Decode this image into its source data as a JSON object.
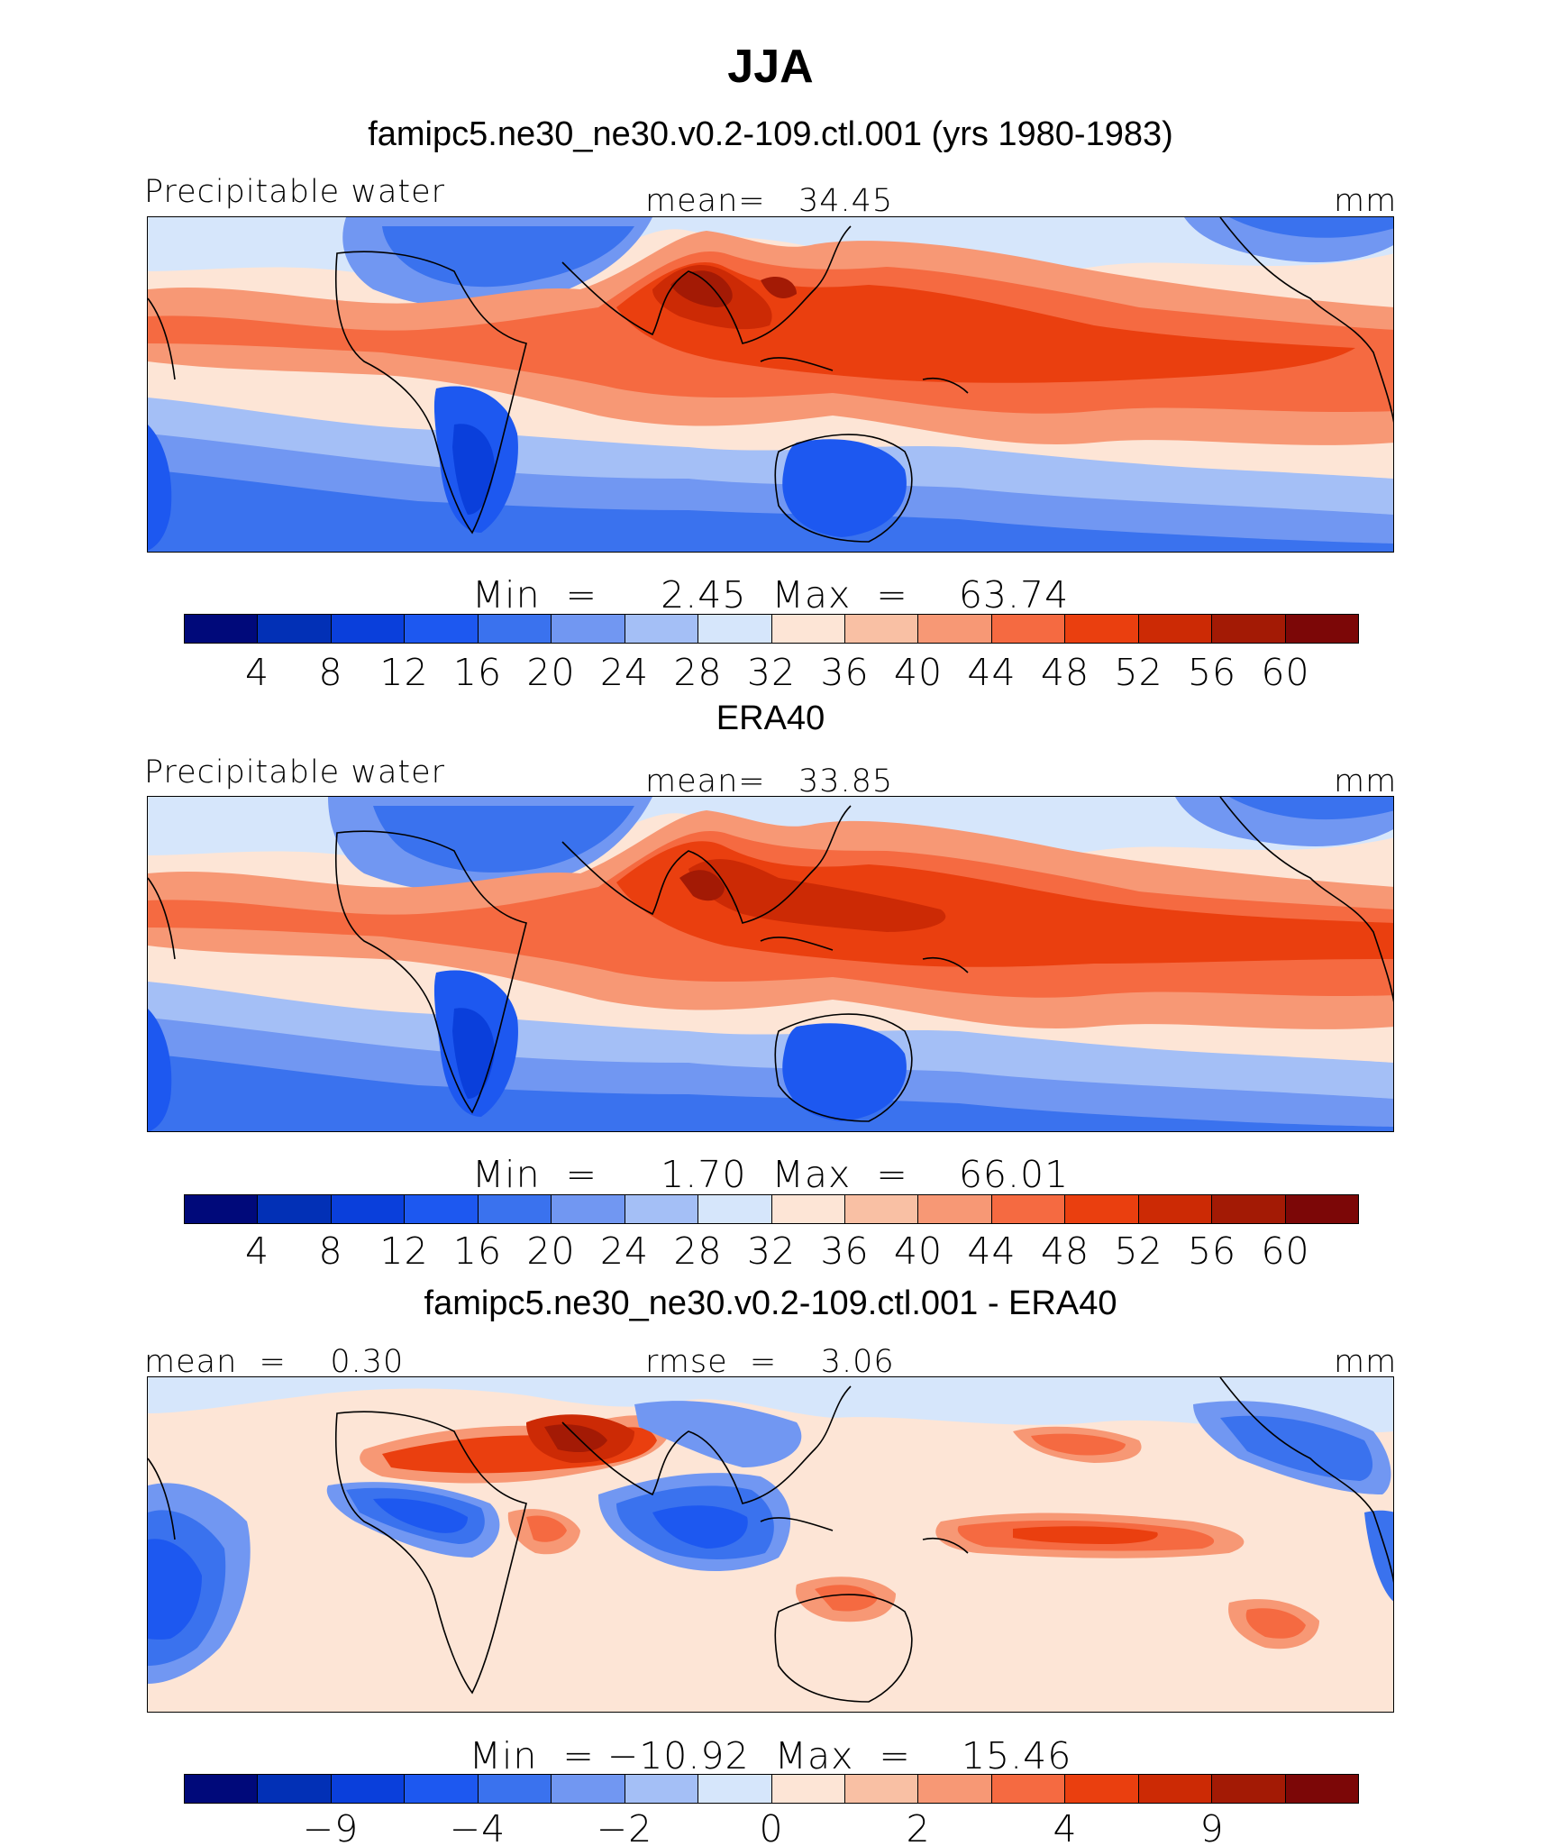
{
  "title": "JJA",
  "palette": [
    "#00097a",
    "#0230b6",
    "#0a3fdb",
    "#1d58f0",
    "#3a72ee",
    "#7197f2",
    "#a4bff6",
    "#d6e6fb",
    "#fde5d6",
    "#f9c0a4",
    "#f79875",
    "#f56a41",
    "#ea3f0f",
    "#cc2a05",
    "#a31a05",
    "#7c0707"
  ],
  "panels": [
    {
      "id": "model",
      "header": "famipc5.ne30_ne30.v0.2-109.ctl.001 (yrs 1980-1983)",
      "left_label": "Precipitable water",
      "center_label": "mean=   34.45",
      "right_label": "mm",
      "minmax": "Min  =     2.45  Max  =    63.74",
      "ticks": [
        "4",
        "8",
        "12",
        "16",
        "20",
        "24",
        "28",
        "32",
        "36",
        "40",
        "44",
        "48",
        "52",
        "56",
        "60"
      ]
    },
    {
      "id": "obs",
      "header": "ERA40",
      "left_label": "Precipitable water",
      "center_label": "mean=   33.85",
      "right_label": "mm",
      "minmax": "Min  =     1.70  Max  =    66.01",
      "ticks": [
        "4",
        "8",
        "12",
        "16",
        "20",
        "24",
        "28",
        "32",
        "36",
        "40",
        "44",
        "48",
        "52",
        "56",
        "60"
      ]
    },
    {
      "id": "diff",
      "header": "famipc5.ne30_ne30.v0.2-109.ctl.001 - ERA40",
      "left_label": "mean  =    0.30",
      "center_label": "rmse  =    3.06",
      "right_label": "mm",
      "minmax": "Min  = −10.92  Max  =    15.46",
      "ticks": [
        "−9",
        "−4",
        "−2",
        "0",
        "2",
        "4",
        "9"
      ]
    }
  ]
}
